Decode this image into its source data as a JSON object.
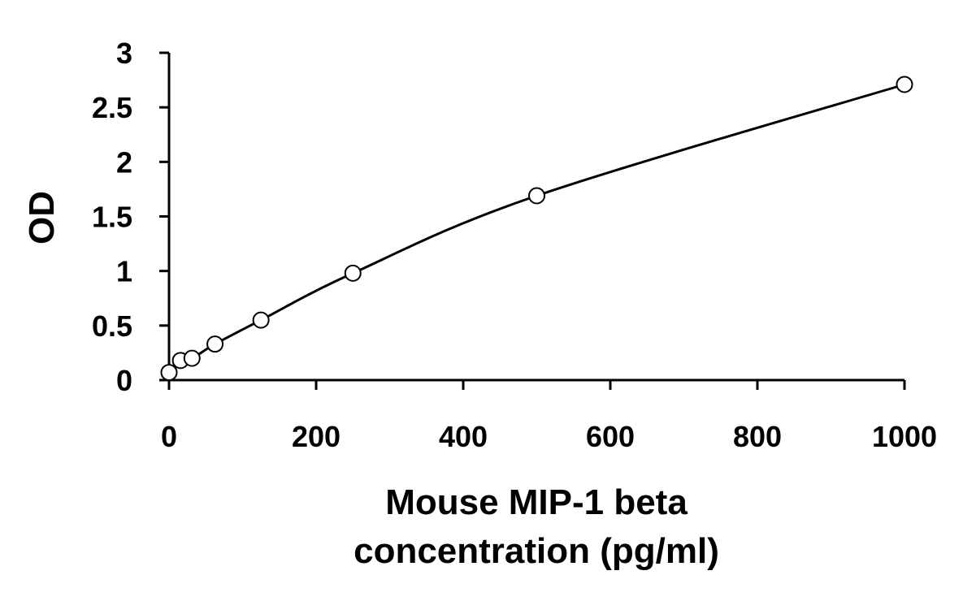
{
  "chart_data": {
    "type": "scatter",
    "title": "",
    "xlabel_lines": [
      "Mouse MIP-1 beta",
      "concentration (pg/ml)"
    ],
    "ylabel": "OD",
    "xlim": [
      0,
      1000
    ],
    "ylim": [
      0,
      3
    ],
    "x_ticks": [
      0,
      200,
      400,
      600,
      800,
      1000
    ],
    "y_ticks": [
      0,
      0.5,
      1,
      1.5,
      2,
      2.5,
      3
    ],
    "x_tick_labels": [
      "0",
      "200",
      "400",
      "600",
      "800",
      "1000"
    ],
    "y_tick_labels": [
      "0",
      "0.5",
      "1",
      "1.5",
      "2",
      "2.5",
      "3"
    ],
    "grid": false,
    "legend": "none",
    "series": [
      {
        "x": [
          0,
          15.6,
          31.25,
          62.5,
          125,
          250,
          500,
          1000
        ],
        "y": [
          0.07,
          0.18,
          0.2,
          0.33,
          0.55,
          0.98,
          1.69,
          2.71
        ],
        "marker": "open-circle",
        "fit_line": true
      }
    ]
  }
}
